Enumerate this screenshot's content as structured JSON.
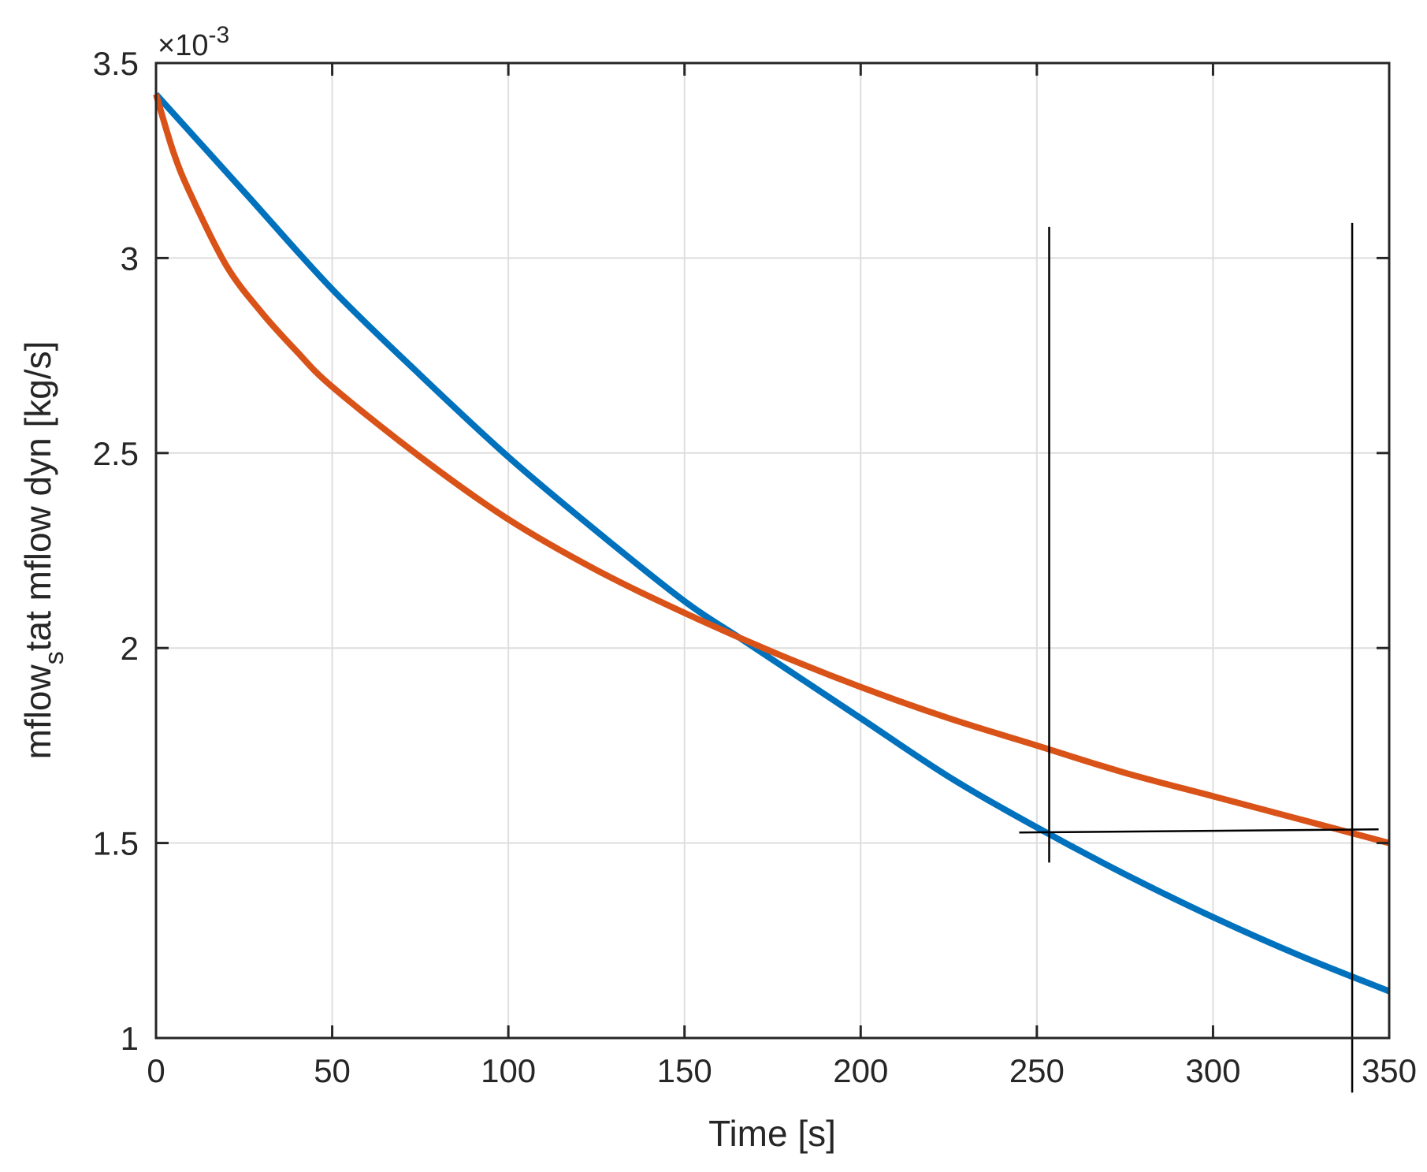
{
  "chart_data": {
    "type": "line",
    "xlabel": "Time [s]",
    "ylabel": {
      "before_sub": "mflow",
      "sub": "s",
      "after_sub": "tat mflow dyn [kg/s]"
    },
    "y_multiplier": {
      "base": "×10",
      "exponent": "-3"
    },
    "xlim": [
      0,
      350
    ],
    "ylim": [
      1.0,
      3.5
    ],
    "grid": true,
    "x_ticks": [
      0,
      50,
      100,
      150,
      200,
      250,
      300,
      350
    ],
    "x_tick_labels": [
      "0",
      "50",
      "100",
      "150",
      "200",
      "250",
      "300",
      "350"
    ],
    "y_ticks": [
      1.0,
      1.5,
      2.0,
      2.5,
      3.0,
      3.5
    ],
    "y_tick_labels": [
      "1",
      "1.5",
      "2",
      "2.5",
      "3",
      "3.5"
    ],
    "series": [
      {
        "color": "#0072BD",
        "x": [
          0,
          25,
          50,
          75,
          100,
          125,
          150,
          165,
          175,
          200,
          225,
          250,
          275,
          300,
          325,
          350
        ],
        "y": [
          3.42,
          3.17,
          2.92,
          2.7,
          2.49,
          2.3,
          2.12,
          2.03,
          1.97,
          1.82,
          1.67,
          1.54,
          1.42,
          1.31,
          1.21,
          1.12
        ]
      },
      {
        "color": "#D95319",
        "x": [
          0,
          5,
          10,
          20,
          30,
          40,
          50,
          75,
          100,
          125,
          150,
          175,
          200,
          225,
          250,
          275,
          300,
          325,
          350
        ],
        "y": [
          3.42,
          3.27,
          3.16,
          2.98,
          2.86,
          2.76,
          2.67,
          2.49,
          2.33,
          2.2,
          2.09,
          1.99,
          1.9,
          1.82,
          1.75,
          1.68,
          1.62,
          1.56,
          1.5
        ]
      }
    ],
    "annotation_lines": [
      {
        "x1": 245,
        "y1": 1.527,
        "x2": 347,
        "y2": 1.535
      },
      {
        "x1": 253.5,
        "y1": 3.08,
        "x2": 253.5,
        "y2": 1.45
      },
      {
        "x1": 339.5,
        "y1": 3.09,
        "x2": 339.5,
        "y2": 0.86
      }
    ]
  }
}
